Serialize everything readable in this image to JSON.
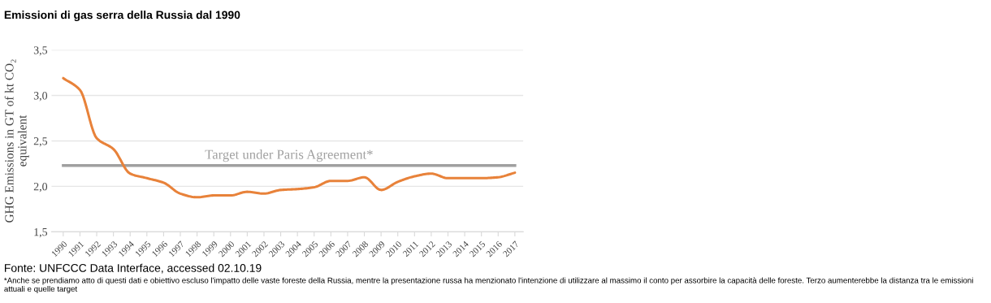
{
  "chart_data": {
    "type": "line",
    "title": "Emissioni di gas serra della Russia dal 1990",
    "ylabel": "GHG Emissions in GT of kt CO₂\nequivalent",
    "categories": [
      "1990",
      "1991",
      "1992",
      "1993",
      "1994",
      "1995",
      "1996",
      "1997",
      "1998",
      "1999",
      "2000",
      "2001",
      "2002",
      "2003",
      "2004",
      "2005",
      "2006",
      "2007",
      "2008",
      "2009",
      "2010",
      "2011",
      "2012",
      "2013",
      "2014",
      "2015",
      "2016",
      "2017"
    ],
    "series": [
      {
        "color": "#e8823a",
        "values": [
          3.19,
          3.06,
          2.53,
          2.41,
          2.14,
          2.09,
          2.04,
          1.92,
          1.88,
          1.9,
          1.9,
          1.94,
          1.92,
          1.96,
          1.97,
          1.99,
          2.06,
          2.06,
          2.1,
          1.96,
          2.05,
          2.11,
          2.14,
          2.09,
          2.09,
          2.09,
          2.1,
          2.15
        ]
      }
    ],
    "ylim": [
      1.5,
      3.5
    ],
    "yticks": [
      {
        "value": 1.5,
        "label": "1,5"
      },
      {
        "value": 2.0,
        "label": "2,0"
      },
      {
        "value": 2.5,
        "label": "2,5"
      },
      {
        "value": 3.0,
        "label": "3,0"
      },
      {
        "value": 3.5,
        "label": "3,5"
      }
    ],
    "grid": "y",
    "marker": "none",
    "line_style": "solid",
    "ref_lines": [
      {
        "axis": "y",
        "value": 2.23,
        "label": "Target under Paris Agreement*",
        "color": "#a0a0a0"
      }
    ],
    "annotations": [
      "Fonte: UNFCCC Data Interface, accessed 02.10.19",
      "*Anche se prendiamo atto di questi dati e obiettivo escluso l'impatto delle vaste foreste della Russia, mentre la presentazione russa ha menzionato l'intenzione di utilizzare al massimo il conto per assorbire la capacità delle foreste. Terzo aumenterebbe la distanza tra le emissioni attuali e quelle target"
    ]
  }
}
